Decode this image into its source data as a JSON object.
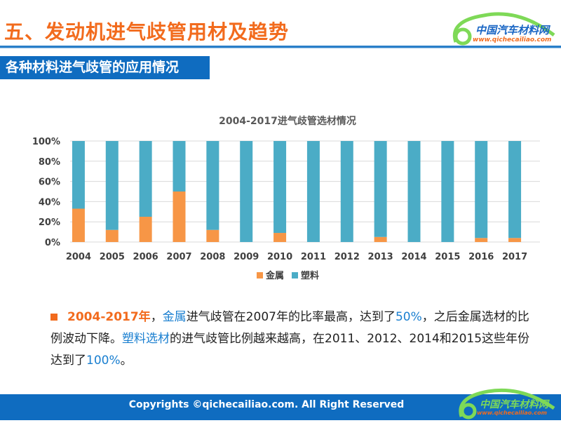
{
  "header": {
    "title": "五、发动机进气歧管用材及趋势",
    "logo_cn": "中国汽车材料网",
    "logo_url": "www.qichecailiao.com"
  },
  "section": {
    "title": "各种材料进气歧管的应用情况"
  },
  "chart_data": {
    "type": "bar",
    "stacked": true,
    "percent": true,
    "title": "2004-2017进气歧管选材情况",
    "categories": [
      "2004",
      "2005",
      "2006",
      "2007",
      "2008",
      "2009",
      "2010",
      "2011",
      "2012",
      "2013",
      "2014",
      "2015",
      "2016",
      "2017"
    ],
    "series": [
      {
        "name": "金属",
        "color": "#f79646",
        "values": [
          33,
          12,
          25,
          50,
          12,
          0,
          9,
          0,
          0,
          5,
          0,
          0,
          4,
          4
        ]
      },
      {
        "name": "塑料",
        "color": "#4bacc6",
        "values": [
          67,
          88,
          75,
          50,
          88,
          100,
          91,
          100,
          100,
          95,
          100,
          100,
          96,
          96
        ]
      }
    ],
    "yticks": [
      "0%",
      "20%",
      "40%",
      "60%",
      "80%",
      "100%"
    ],
    "ylim": [
      0,
      100
    ],
    "grid": true,
    "legend": "bottom"
  },
  "text": {
    "p1": "2004-2017年",
    "p2": "，",
    "p3": "金属",
    "p4": "进气歧管在2007年的比率最高，达到了",
    "p5": "50%",
    "p6": "，之后金属选材的比例波动下降。",
    "p7": "塑料选材",
    "p8": "的进气歧管比例越来越高，在2011、2012、2014和2015这些年份达到了",
    "p9": "100%",
    "p10": "。"
  },
  "footer": {
    "copyright": "Copyrights ©qichecailiao.com. All Right Reserved",
    "logo_cn": "中国汽车材料网",
    "logo_url": "www.qichecailiao.com"
  }
}
